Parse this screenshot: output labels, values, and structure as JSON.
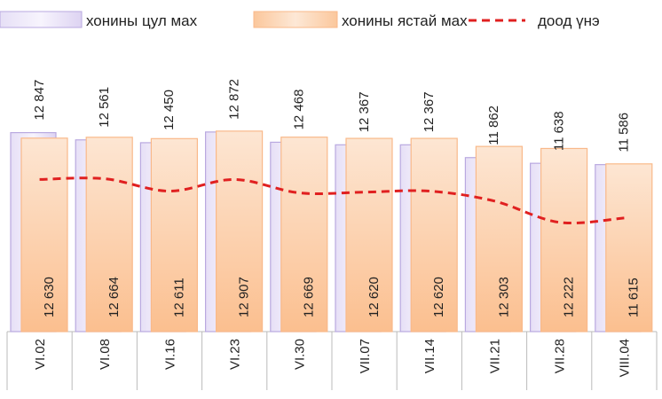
{
  "chart_data": {
    "type": "bar",
    "categories": [
      "VI.02",
      "VI.08",
      "VI.16",
      "VI.23",
      "VI.30",
      "VII.07",
      "VII.14",
      "VII.21",
      "VII.28",
      "VIII.04"
    ],
    "series": [
      {
        "name": "хонины цул мах",
        "color": "#b9a9e0",
        "type": "bar",
        "values": [
          12847,
          12561,
          12450,
          12872,
          12468,
          12367,
          12367,
          11862,
          11638,
          11586
        ],
        "value_labels": [
          "12 847",
          "12 561",
          "12 450",
          "12 872",
          "12 468",
          "12 367",
          "12 367",
          "11 862",
          "11 638",
          "11 586"
        ]
      },
      {
        "name": "хонины ястай мах",
        "color": "#f9b98a",
        "type": "bar",
        "values": [
          12630,
          12664,
          12611,
          12907,
          12669,
          12620,
          12620,
          12303,
          12222,
          11615
        ],
        "value_labels": [
          "12 630",
          "12 664",
          "12 611",
          "12 907",
          "12 669",
          "12 620",
          "12 620",
          "12 303",
          "12 222",
          "11 615"
        ]
      },
      {
        "name": "доод үнэ",
        "color": "#e02020",
        "type": "line",
        "values": [
          11000,
          11030,
          10540,
          11000,
          10470,
          10500,
          10540,
          10150,
          9310,
          9480
        ]
      }
    ],
    "ylim": [
      5000,
      15000
    ]
  }
}
